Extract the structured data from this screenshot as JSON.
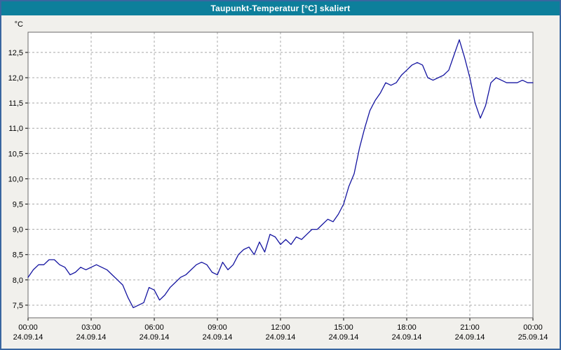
{
  "window": {
    "title": "Taupunkt-Temperatur [°C] skaliert"
  },
  "colors": {
    "titlebar_bg": "#0d7f9b",
    "window_border": "#3a66a0",
    "outer_bg": "#f1f0ec",
    "plot_bg": "#ffffff",
    "frame": "#6a6a6a",
    "grid": "#a8a8a8",
    "axis_text": "#000000",
    "line": "#1414a0"
  },
  "chart_data": {
    "type": "line",
    "title": "Taupunkt-Temperatur [°C] skaliert",
    "xlabel": "",
    "ylabel": "°C",
    "grid": true,
    "legend": "none",
    "xlim": [
      0,
      24
    ],
    "ylim": [
      7.25,
      12.9
    ],
    "xticks": [
      0,
      3,
      6,
      9,
      12,
      15,
      18,
      21,
      24
    ],
    "xtick_labels": [
      {
        "time": "00:00",
        "date": "24.09.14"
      },
      {
        "time": "03:00",
        "date": "24.09.14"
      },
      {
        "time": "06:00",
        "date": "24.09.14"
      },
      {
        "time": "09:00",
        "date": "24.09.14"
      },
      {
        "time": "12:00",
        "date": "24.09.14"
      },
      {
        "time": "15:00",
        "date": "24.09.14"
      },
      {
        "time": "18:00",
        "date": "24.09.14"
      },
      {
        "time": "21:00",
        "date": "24.09.14"
      },
      {
        "time": "00:00",
        "date": "25.09.14"
      }
    ],
    "yticks": [
      7.5,
      8.0,
      8.5,
      9.0,
      9.5,
      10.0,
      10.5,
      11.0,
      11.5,
      12.0,
      12.5
    ],
    "ytick_labels": [
      "7,5",
      "8,0",
      "8,5",
      "9,0",
      "9,5",
      "10,0",
      "10,5",
      "11,0",
      "11,5",
      "12,0",
      "12,5"
    ],
    "series": [
      {
        "name": "Taupunkt-Temperatur",
        "color": "#1414a0",
        "x_start": 0,
        "x_step": 0.25,
        "values": [
          8.05,
          8.2,
          8.3,
          8.3,
          8.4,
          8.4,
          8.3,
          8.25,
          8.1,
          8.15,
          8.25,
          8.2,
          8.25,
          8.3,
          8.25,
          8.2,
          8.1,
          8.0,
          7.9,
          7.65,
          7.45,
          7.5,
          7.55,
          7.85,
          7.8,
          7.6,
          7.7,
          7.85,
          7.95,
          8.05,
          8.1,
          8.2,
          8.3,
          8.35,
          8.3,
          8.15,
          8.1,
          8.35,
          8.2,
          8.3,
          8.5,
          8.6,
          8.65,
          8.5,
          8.75,
          8.55,
          8.9,
          8.85,
          8.7,
          8.8,
          8.7,
          8.85,
          8.8,
          8.9,
          9.0,
          9.0,
          9.1,
          9.2,
          9.15,
          9.3,
          9.5,
          9.85,
          10.1,
          10.6,
          11.0,
          11.35,
          11.55,
          11.7,
          11.9,
          11.85,
          11.9,
          12.05,
          12.15,
          12.25,
          12.3,
          12.25,
          12.0,
          11.95,
          12.0,
          12.05,
          12.15,
          12.45,
          12.75,
          12.4,
          12.0,
          11.5,
          11.2,
          11.45,
          11.9,
          12.0,
          11.95,
          11.9,
          11.9,
          11.9,
          11.95,
          11.9,
          11.9
        ]
      }
    ]
  }
}
